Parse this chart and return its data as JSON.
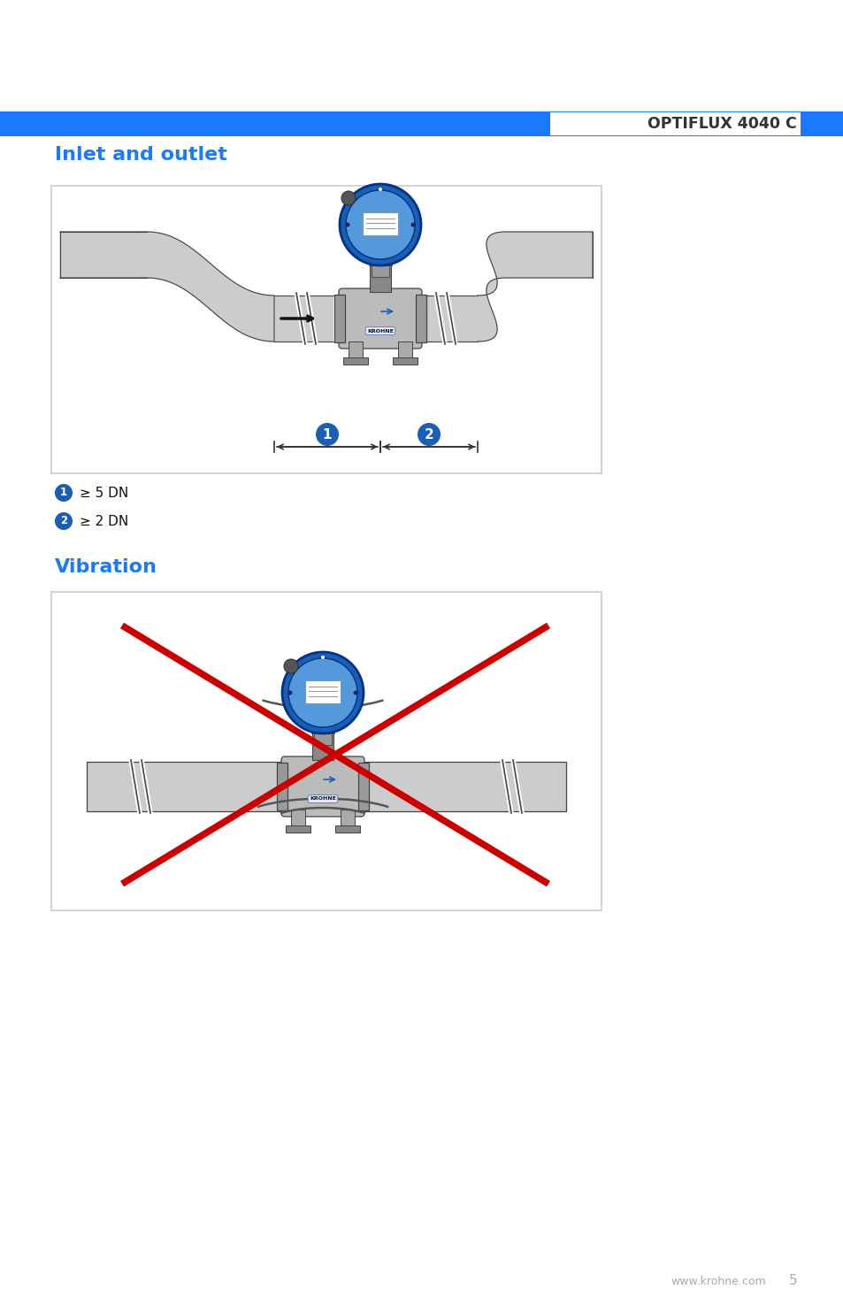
{
  "bg_color": "#ffffff",
  "header_bar_color": "#1a7aff",
  "header_text": "OPTIFLUX 4040 C",
  "header_text_color": "#333333",
  "section1_title": "Inlet and outlet",
  "section1_title_color": "#1a7aff",
  "section2_title": "Vibration",
  "section2_title_color": "#1a7aff",
  "label1": "≥ 5 DN",
  "label2": "≥ 2 DN",
  "footer_text": "www.krohne.com",
  "footer_page": "5",
  "footer_color": "#aaaaaa",
  "pipe_color": "#cccccc",
  "pipe_edge_color": "#444444",
  "device_blue": "#1a5fb4",
  "device_blue_inner": "#4488cc",
  "red_cross_color": "#cc0000",
  "box_border_color": "#cccccc",
  "device_gray": "#aaaaaa",
  "device_dark": "#666666"
}
